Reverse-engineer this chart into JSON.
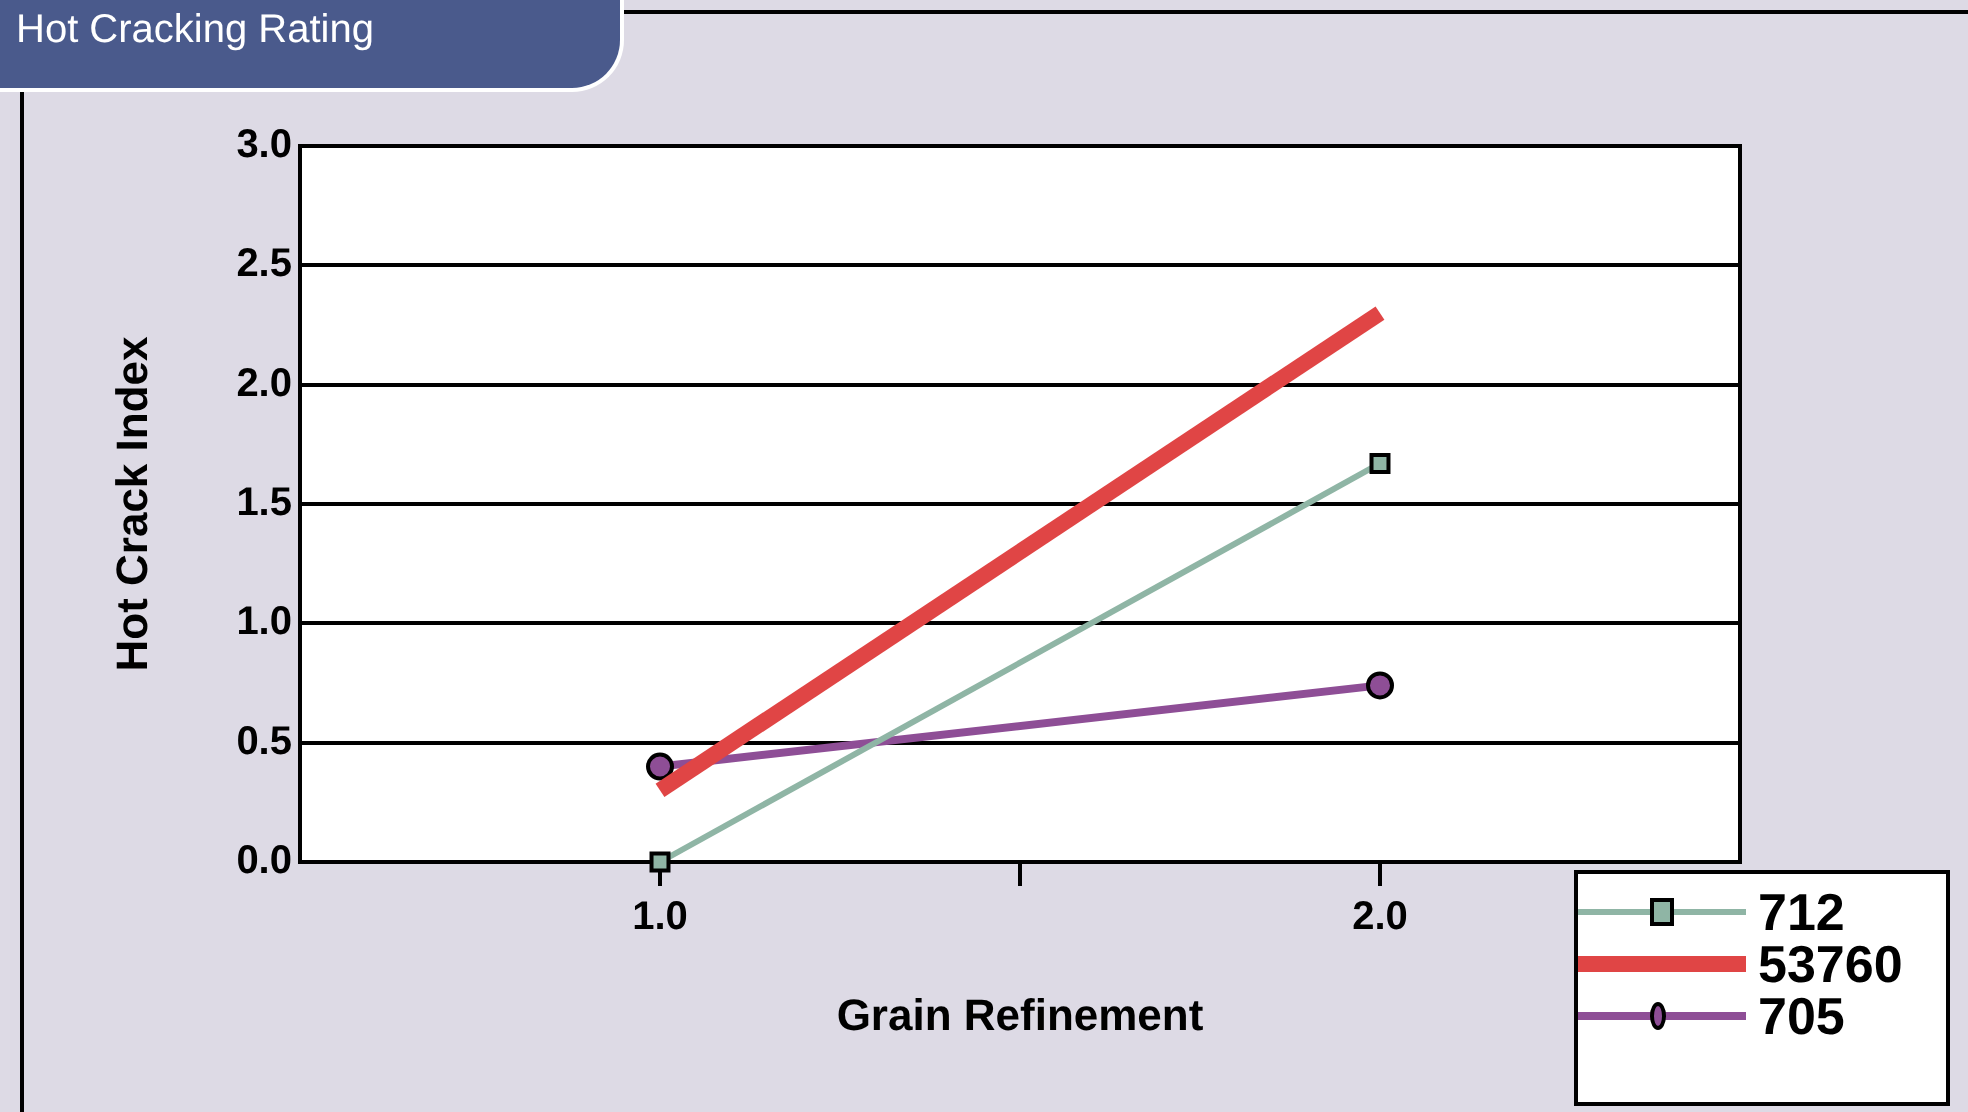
{
  "chart_data": {
    "type": "line",
    "title": "Hot Cracking Rating",
    "xlabel": "Grain Refinement",
    "ylabel": "Hot Crack Index",
    "x": [
      1,
      2
    ],
    "series": [
      {
        "name": "712",
        "color": "#8fb5a5",
        "values": [
          0,
          1.67
        ],
        "marker": "square"
      },
      {
        "name": "53760",
        "color": "#e04545",
        "values": [
          0.3,
          2.3
        ],
        "marker": "none"
      },
      {
        "name": "705",
        "color": "#8e4e96",
        "values": [
          0.4,
          0.74
        ],
        "marker": "circle"
      }
    ],
    "xlim": [
      0.5,
      2.5
    ],
    "xticks": [
      {
        "value": 1,
        "label": "1.0"
      },
      {
        "value": 1.5,
        "label": null
      },
      {
        "value": 2,
        "label": "2.0"
      }
    ],
    "ylim": [
      0,
      3
    ],
    "yticks": [
      {
        "value": 0,
        "label": "0.0"
      },
      {
        "value": 0.5,
        "label": "0.5"
      },
      {
        "value": 1,
        "label": "1.0"
      },
      {
        "value": 1.5,
        "label": "1.5"
      },
      {
        "value": 2,
        "label": "2.0"
      },
      {
        "value": 2.5,
        "label": "2.5"
      },
      {
        "value": 3,
        "label": "3.0"
      }
    ],
    "grid": "y",
    "legend": "bottom right",
    "line_style": "solid"
  }
}
